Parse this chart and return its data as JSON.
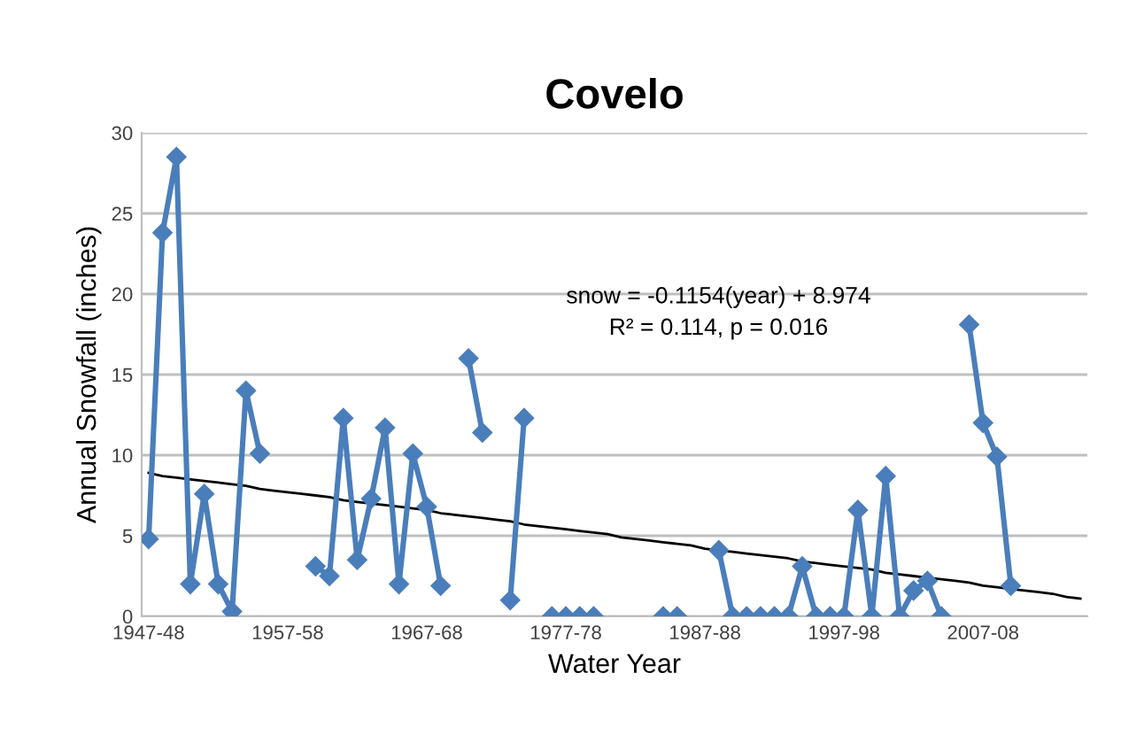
{
  "chart_data": {
    "type": "line",
    "title": "Covelo",
    "xlabel": "Water Year",
    "ylabel": "Annual Snowfall (inches)",
    "categories": [
      "1947-48",
      null,
      null,
      null,
      null,
      null,
      null,
      null,
      null,
      null,
      "1957-58",
      null,
      null,
      null,
      null,
      null,
      null,
      null,
      null,
      null,
      "1967-68",
      null,
      null,
      null,
      null,
      null,
      null,
      null,
      null,
      null,
      "1977-78",
      null,
      null,
      null,
      null,
      null,
      null,
      null,
      null,
      null,
      "1987-88",
      null,
      null,
      null,
      null,
      null,
      null,
      null,
      null,
      null,
      "1997-98",
      null,
      null,
      null,
      null,
      null,
      null,
      null,
      null,
      null,
      "2007-08",
      null,
      null,
      null,
      null,
      null,
      null,
      null
    ],
    "series": [
      {
        "color": "#4a7ebb",
        "marker": "diamond",
        "values": [
          4.8,
          23.8,
          28.5,
          2.0,
          7.6,
          2.0,
          0.3,
          14.0,
          10.1,
          null,
          null,
          null,
          3.1,
          2.5,
          12.3,
          3.5,
          7.3,
          11.7,
          2.0,
          10.1,
          6.8,
          1.9,
          null,
          16.0,
          11.4,
          null,
          1.0,
          12.3,
          null,
          0,
          0,
          0,
          0,
          null,
          null,
          null,
          null,
          0,
          0,
          null,
          null,
          4.1,
          0,
          0,
          0,
          0,
          0,
          3.1,
          0,
          0,
          0,
          6.6,
          0,
          8.7,
          0,
          1.6,
          2.2,
          0,
          null,
          18.1,
          12.0,
          9.9,
          1.9,
          null,
          null,
          null,
          null,
          null
        ]
      },
      {
        "type": "line",
        "color": "#000000",
        "marker": "none",
        "values": [
          8.9,
          8.7,
          8.6,
          8.5,
          8.4,
          8.3,
          8.2,
          8.1,
          7.9,
          7.8,
          7.7,
          7.6,
          7.5,
          7.4,
          7.2,
          7.1,
          7.0,
          6.9,
          6.8,
          6.7,
          6.6,
          6.4,
          6.3,
          6.2,
          6.1,
          6.0,
          5.9,
          5.7,
          5.6,
          5.5,
          5.4,
          5.3,
          5.2,
          5.1,
          4.9,
          4.8,
          4.7,
          4.6,
          4.5,
          4.4,
          4.2,
          4.1,
          4.0,
          3.9,
          3.8,
          3.7,
          3.6,
          3.4,
          3.3,
          3.2,
          3.1,
          3.0,
          2.9,
          2.7,
          2.6,
          2.5,
          2.4,
          2.3,
          2.2,
          2.1,
          1.9,
          1.8,
          1.7,
          1.6,
          1.5,
          1.4,
          1.2,
          1.1
        ]
      }
    ],
    "annotations": [
      "snow = -0.1154(year) + 8.974",
      "R² = 0.114, p = 0.016"
    ],
    "ylim": [
      0,
      30
    ],
    "yticks": [
      0,
      5,
      10,
      15,
      20,
      25,
      30
    ],
    "grid": "y",
    "legend": false
  }
}
